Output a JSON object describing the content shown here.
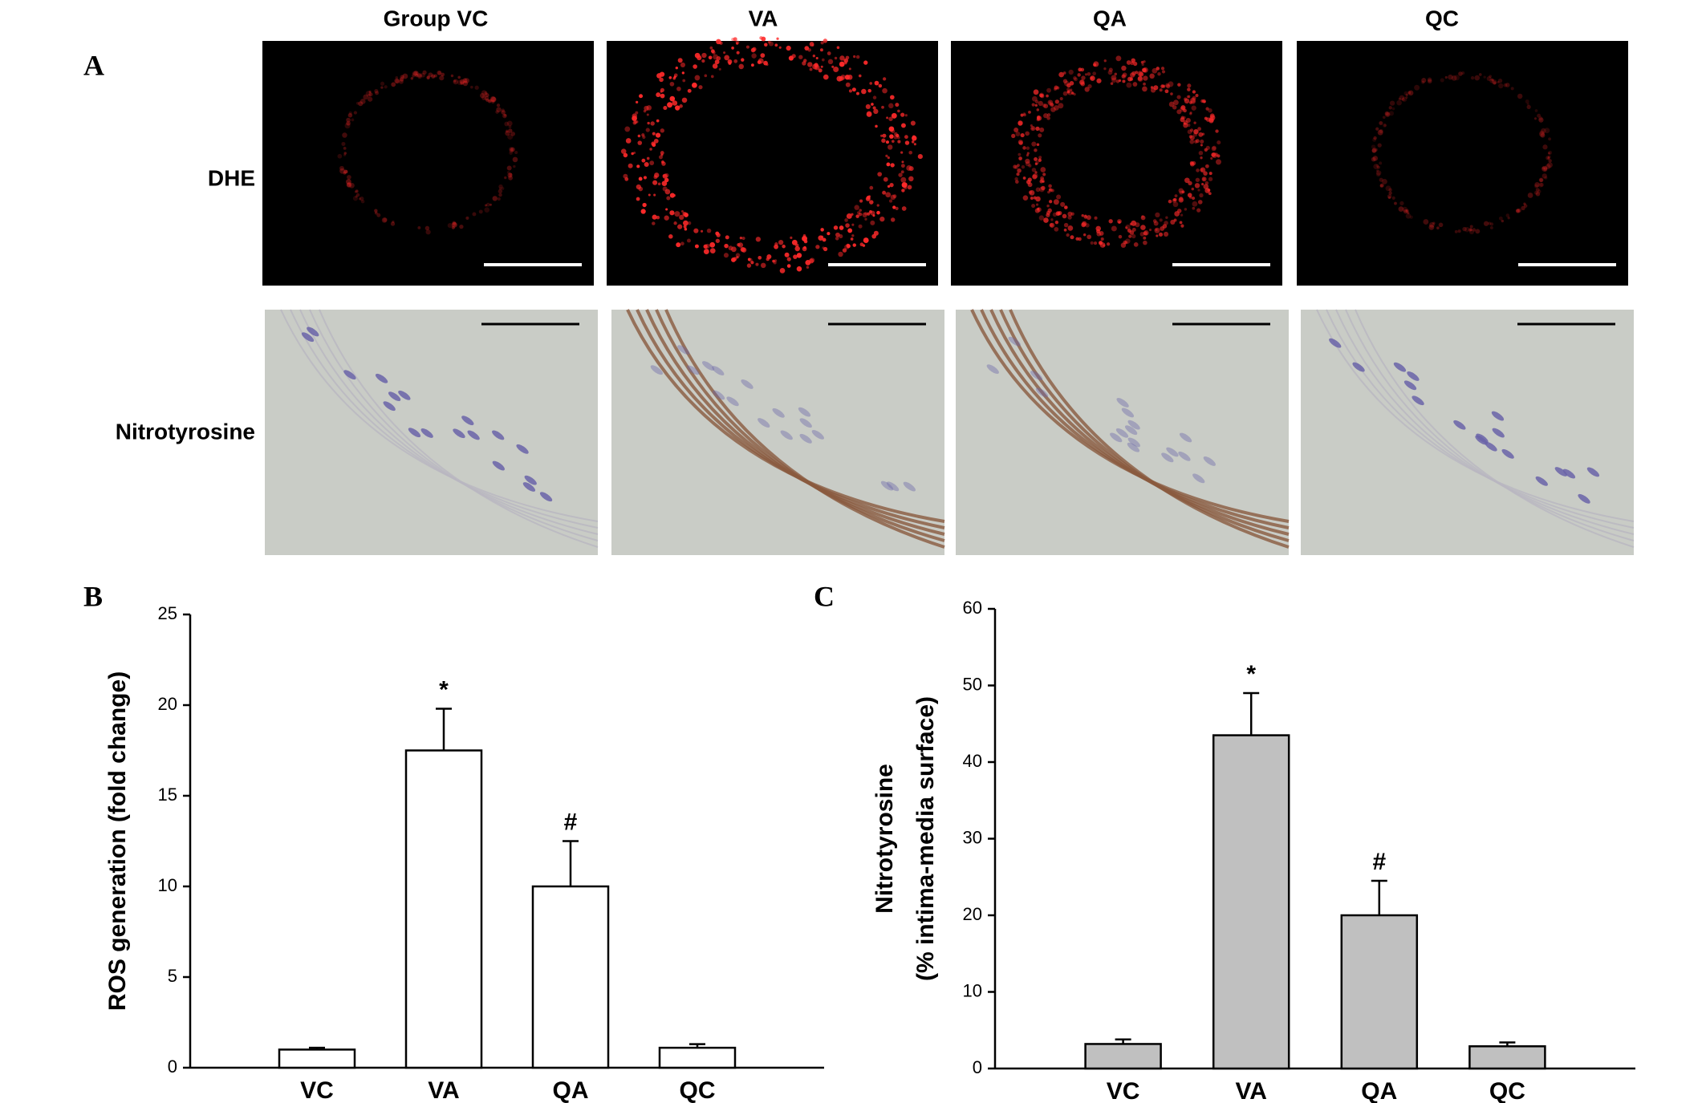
{
  "panel_a": {
    "label": "A",
    "columns": [
      "Group VC",
      "VA",
      "QA",
      "QC"
    ],
    "rows": [
      "DHE",
      "Nitrotyrosine"
    ]
  },
  "chart_data": [
    {
      "type": "bar",
      "panel": "B",
      "y_label": [
        "ROS generation (fold change)"
      ],
      "categories": [
        "VC",
        "VA",
        "QA",
        "QC"
      ],
      "values": [
        1,
        17.5,
        10,
        1.1
      ],
      "errors": [
        0.1,
        2.3,
        2.5,
        0.2
      ],
      "annotations": [
        null,
        "*",
        "#",
        null
      ],
      "color": "#ffffff",
      "ylim": [
        0,
        25
      ],
      "yticks": [
        0,
        5,
        10,
        15,
        20,
        25
      ]
    },
    {
      "type": "bar",
      "panel": "C",
      "y_label": [
        "Nitrotyrosine",
        "(% intima-media surface)"
      ],
      "categories": [
        "VC",
        "VA",
        "QA",
        "QC"
      ],
      "values": [
        3.2,
        43.5,
        20,
        2.9
      ],
      "errors": [
        0.6,
        5.5,
        4.5,
        0.5
      ],
      "annotations": [
        null,
        "*",
        "#",
        null
      ],
      "color": "#c0c0c0",
      "ylim": [
        0,
        60
      ],
      "yticks": [
        0,
        10,
        20,
        30,
        40,
        50,
        60
      ]
    }
  ]
}
